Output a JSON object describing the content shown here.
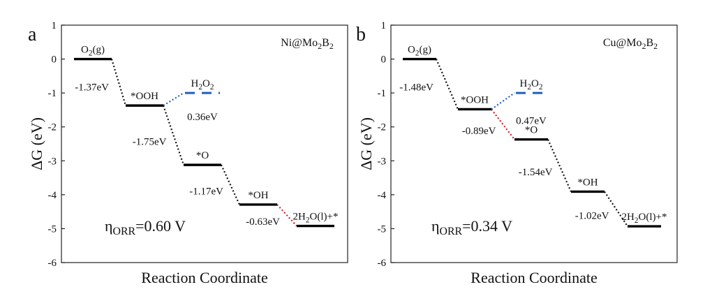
{
  "chart_data": [
    {
      "type": "line",
      "panel_letter": "a",
      "title": "Ni@Mo₂B₂",
      "xlabel": "Reaction Coordinate",
      "ylabel": "ΔG (eV)",
      "ylim": [
        -6,
        1
      ],
      "yticks": [
        "1",
        "0",
        "-1",
        "-2",
        "-3",
        "-4",
        "-5",
        "-6"
      ],
      "annotation": "η_ORR=0.60 V",
      "levels": [
        {
          "label": "O₂(g)",
          "value": 0.0,
          "step": 0
        },
        {
          "label": "*OOH",
          "value": -1.37,
          "step": 1
        },
        {
          "label": "H₂O₂",
          "value": -1.0,
          "step": 2,
          "dashed": true,
          "color": "#1f5fbf"
        },
        {
          "label": "*O",
          "value": -3.12,
          "step": 2
        },
        {
          "label": "*OH",
          "value": -4.29,
          "step": 3
        },
        {
          "label": "2H₂O(l)+*",
          "value": -4.92,
          "step": 4
        }
      ],
      "transitions": [
        {
          "from": 0,
          "to": 1,
          "energy": "-1.37eV",
          "color": "#111111"
        },
        {
          "from": 1,
          "to": 2,
          "energy": "0.36eV",
          "color": "#1f5fbf"
        },
        {
          "from": 1,
          "to": 3,
          "energy": "-1.75eV",
          "color": "#111111"
        },
        {
          "from": 3,
          "to": 4,
          "energy": "-1.17eV",
          "color": "#111111"
        },
        {
          "from": 4,
          "to": 5,
          "energy": "-0.63eV",
          "color": "#d42020"
        }
      ]
    },
    {
      "type": "line",
      "panel_letter": "b",
      "title": "Cu@Mo₂B₂",
      "xlabel": "Reaction Coordinate",
      "ylabel": "ΔG (eV)",
      "ylim": [
        -6,
        1
      ],
      "yticks": [
        "1",
        "0",
        "-1",
        "-2",
        "-3",
        "-4",
        "-5",
        "-6"
      ],
      "annotation": "η_ORR=0.34 V",
      "levels": [
        {
          "label": "O₂(g)",
          "value": 0.0,
          "step": 0
        },
        {
          "label": "*OOH",
          "value": -1.48,
          "step": 1
        },
        {
          "label": "H₂O₂",
          "value": -1.0,
          "step": 2,
          "dashed": true,
          "color": "#1f5fbf"
        },
        {
          "label": "*O",
          "value": -2.37,
          "step": 2
        },
        {
          "label": "*OH",
          "value": -3.91,
          "step": 3
        },
        {
          "label": "2H₂O(l)+*",
          "value": -4.93,
          "step": 4
        }
      ],
      "transitions": [
        {
          "from": 0,
          "to": 1,
          "energy": "-1.48eV",
          "color": "#111111"
        },
        {
          "from": 1,
          "to": 2,
          "energy": "0.47eV",
          "color": "#1f5fbf"
        },
        {
          "from": 1,
          "to": 3,
          "energy": "-0.89eV",
          "color": "#d42020"
        },
        {
          "from": 3,
          "to": 4,
          "energy": "-1.54eV",
          "color": "#111111"
        },
        {
          "from": 4,
          "to": 5,
          "energy": "-1.02eV",
          "color": "#111111"
        }
      ]
    }
  ]
}
